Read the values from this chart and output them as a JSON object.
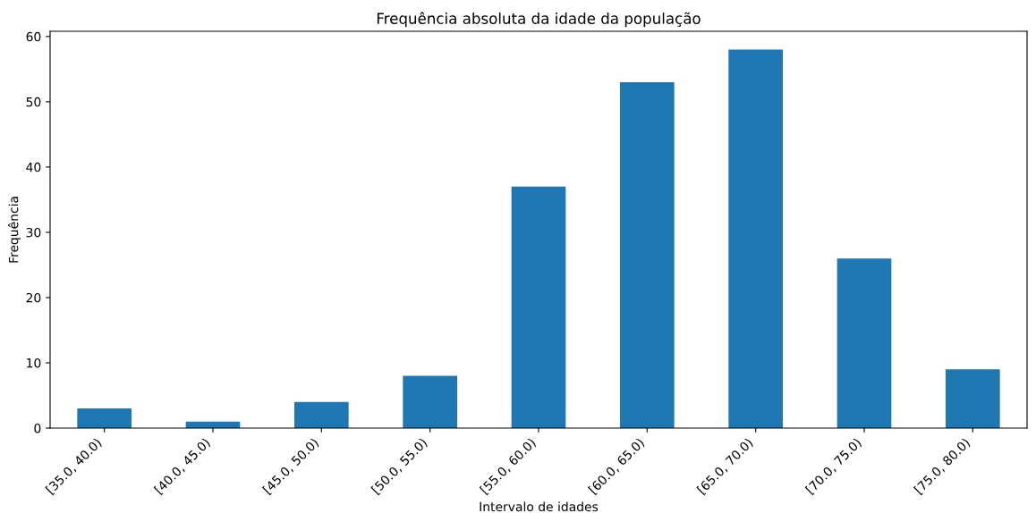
{
  "chart_data": {
    "type": "bar",
    "title": "Frequência absoluta da idade da população",
    "xlabel": "Intervalo de idades",
    "ylabel": "Frequência",
    "categories": [
      "[35.0, 40.0)",
      "[40.0, 45.0)",
      "[45.0, 50.0)",
      "[50.0, 55.0)",
      "[55.0, 60.0)",
      "[60.0, 65.0)",
      "[65.0, 70.0)",
      "[70.0, 75.0)",
      "[75.0, 80.0)"
    ],
    "values": [
      3,
      1,
      4,
      8,
      37,
      53,
      58,
      26,
      9
    ],
    "color": "#1f77b4",
    "ylim": [
      0,
      60.8
    ],
    "yticks": [
      0,
      10,
      20,
      30,
      40,
      50,
      60
    ],
    "grid": false,
    "legend": false
  }
}
